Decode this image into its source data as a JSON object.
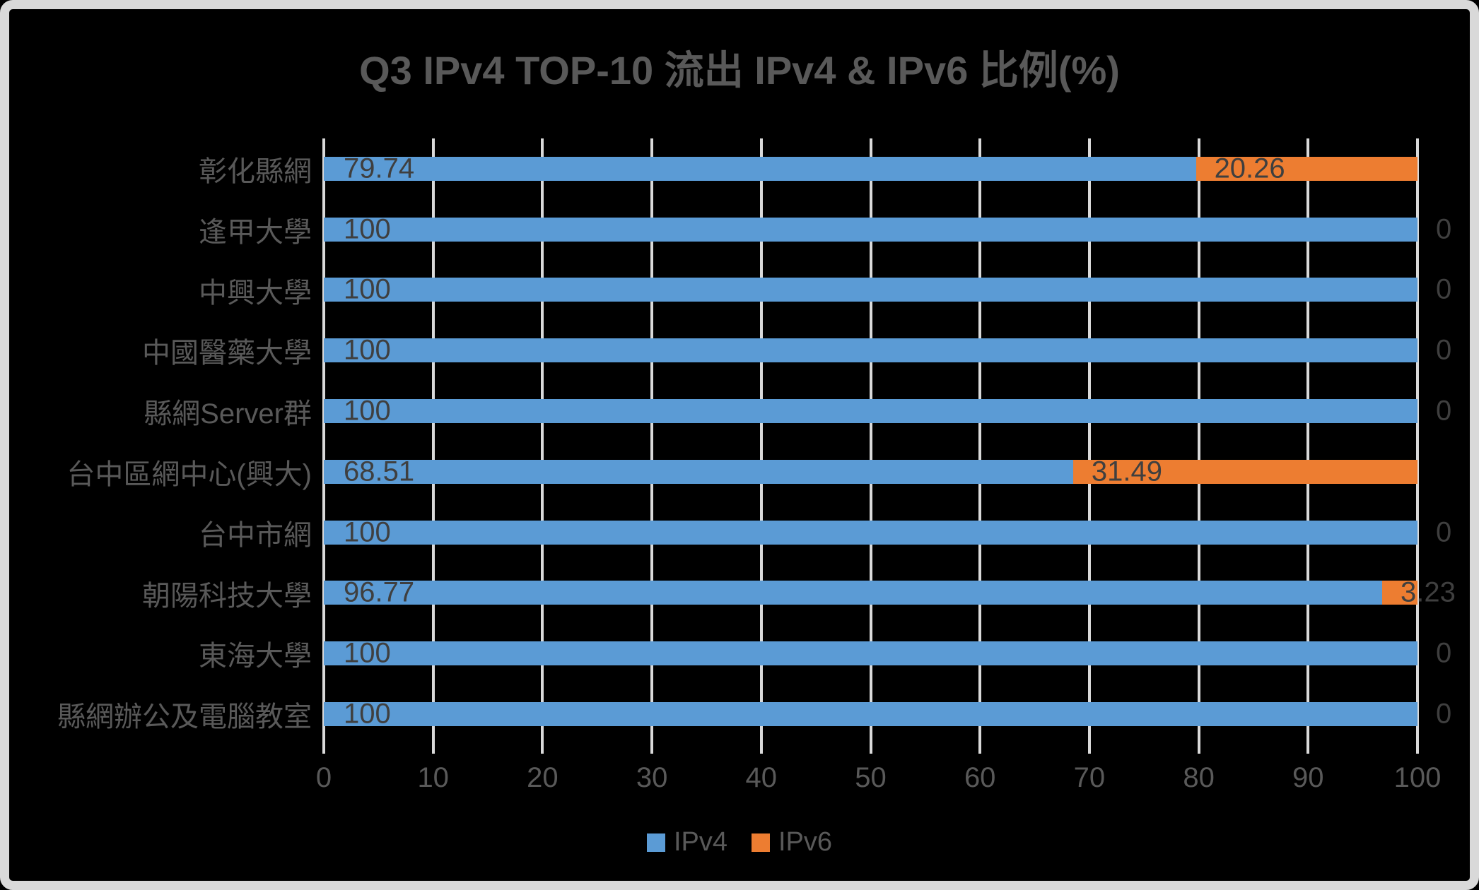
{
  "title": "Q3 IPv4 TOP-10 流出 IPv4 & IPv6 比例(%)",
  "colors": {
    "ipv4": "#5B9BD5",
    "ipv6": "#ED7D31",
    "background": "#000000",
    "frame_border": "#D9D9D9",
    "gridline": "#D9D9D9",
    "title_text": "#595959",
    "axis_text": "#595959",
    "data_label_text": "#3F3F3F"
  },
  "chart_data": {
    "type": "bar",
    "orientation": "horizontal",
    "stacked": true,
    "title": "Q3 IPv4 TOP-10 流出 IPv4 & IPv6 比例(%)",
    "categories": [
      "彰化縣網",
      "逢甲大學",
      "中興大學",
      "中國醫藥大學",
      "縣網Server群",
      "台中區網中心(興大)",
      "台中市網",
      "朝陽科技大學",
      "東海大學",
      "縣網辦公及電腦教室"
    ],
    "series": [
      {
        "name": "IPv4",
        "values": [
          79.74,
          100,
          100,
          100,
          100,
          68.51,
          100,
          96.77,
          100,
          100
        ],
        "labels": [
          "79.74",
          "100",
          "100",
          "100",
          "100",
          "68.51",
          "100",
          "96.77",
          "100",
          "100"
        ]
      },
      {
        "name": "IPv6",
        "values": [
          20.26,
          0,
          0,
          0,
          0,
          31.49,
          0,
          3.23,
          0,
          0
        ],
        "labels": [
          "20.26",
          "0",
          "0",
          "0",
          "0",
          "31.49",
          "0",
          "3.23",
          "0",
          "0"
        ]
      }
    ],
    "x_axis": {
      "min": 0,
      "max": 100,
      "tick_interval": 10,
      "tick_labels": [
        "0",
        "10",
        "20",
        "30",
        "40",
        "50",
        "60",
        "70",
        "80",
        "90",
        "100"
      ]
    },
    "grid": true,
    "legend": {
      "position": "bottom",
      "entries": [
        "IPv4",
        "IPv6"
      ]
    }
  }
}
